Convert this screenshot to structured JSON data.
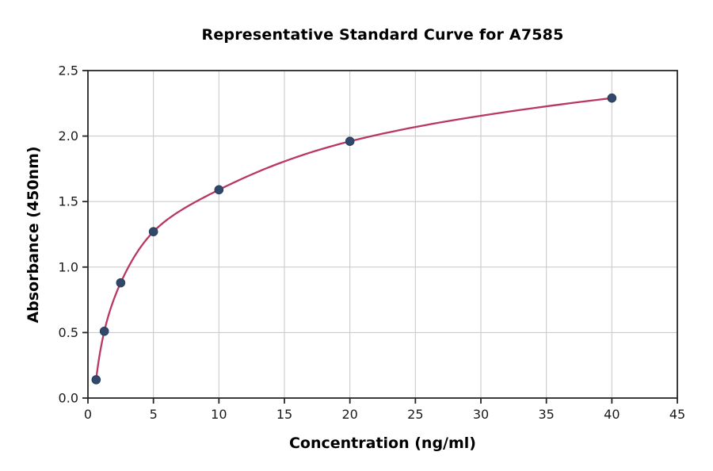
{
  "chart_data": {
    "type": "line",
    "title": "Representative Standard Curve for A7585",
    "xlabel": "Concentration (ng/ml)",
    "ylabel": "Absorbance (450nm)",
    "series": [
      {
        "name": "standard-curve",
        "x": [
          0.625,
          1.25,
          2.5,
          5,
          10,
          20,
          40
        ],
        "y": [
          0.14,
          0.51,
          0.88,
          1.27,
          1.59,
          1.96,
          2.29
        ]
      }
    ],
    "xlim": [
      0,
      45
    ],
    "ylim": [
      0,
      2.5
    ],
    "xticks": [
      0,
      5,
      10,
      15,
      20,
      25,
      30,
      35,
      40,
      45
    ],
    "xtick_labels": [
      "0",
      "5",
      "10",
      "15",
      "20",
      "25",
      "30",
      "35",
      "40",
      "45"
    ],
    "yticks": [
      0,
      0.5,
      1.0,
      1.5,
      2.0,
      2.5
    ],
    "ytick_labels": [
      "0.0",
      "0.5",
      "1.0",
      "1.5",
      "2.0",
      "2.5"
    ],
    "grid": true,
    "legend": null,
    "interpolation": "smooth-log-x",
    "colors": {
      "line": "#b93764",
      "marker": "#31486b",
      "marker_edge": "#2a3d5c",
      "grid": "#cbcbcb",
      "spine": "#262626",
      "text": "#000000",
      "background": "#ffffff"
    }
  }
}
